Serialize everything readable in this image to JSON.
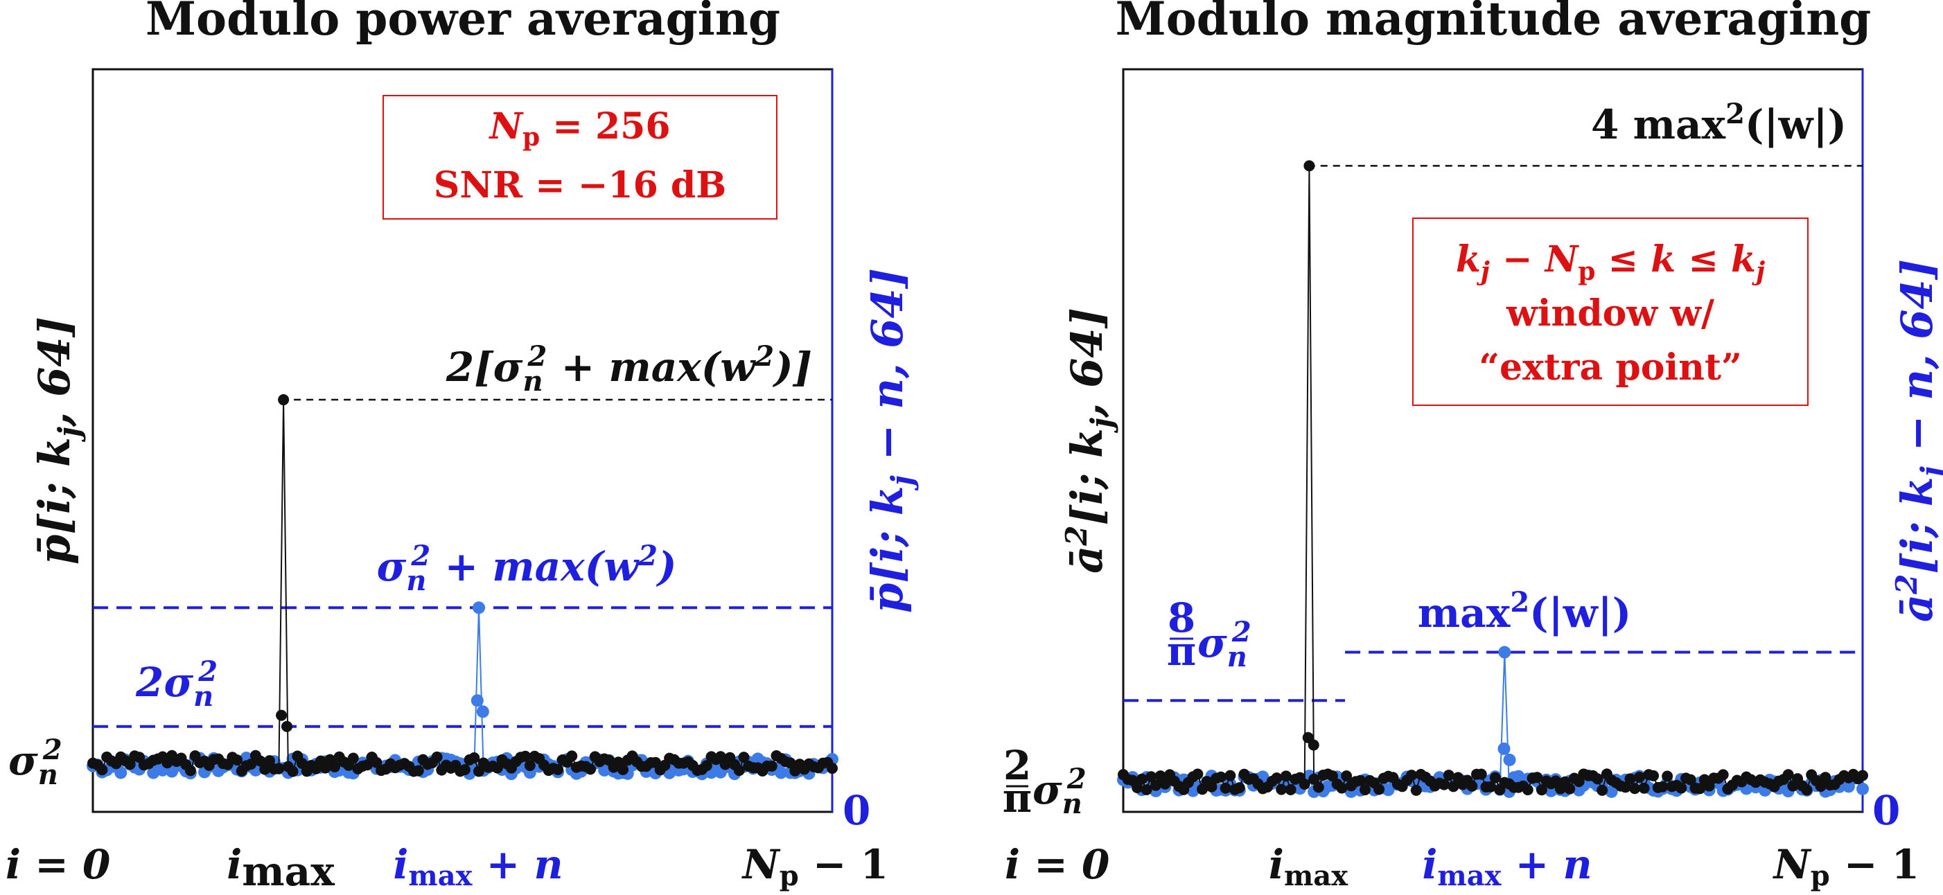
{
  "colors": {
    "black_series": "#111111",
    "blue_series": "#3d7be8",
    "blue_text": "#1f1fe0",
    "red_annot": "#dd1111",
    "ref_black": "#111111",
    "ref_blue": "#1f1fe0"
  },
  "chart_data": [
    {
      "type": "line",
      "title": "Modulo power averaging",
      "ylabel_left": "p̄[i; k_j, 64]",
      "ylabel_right": "p̄[i; k_j − n, 64]",
      "x_ticks": [
        {
          "x": 0,
          "label": "i = 0"
        },
        {
          "x": 0.255,
          "label": "i_max"
        },
        {
          "x": 0.52,
          "label": "i_max + n"
        },
        {
          "x": 1,
          "label": "N_p − 1"
        }
      ],
      "xlim": [
        0,
        1
      ],
      "ylim": [
        0,
        1
      ],
      "left_tick": {
        "y": 0.065,
        "label": "σ_n²"
      },
      "right_tick": {
        "y": 0,
        "label": "0"
      },
      "noise_level_black": 0.065,
      "noise_level_blue": 0.062,
      "series": [
        {
          "name": "black",
          "peak_x": 0.255,
          "peak_y": 0.555,
          "side_values": [
            0.13,
            0.115
          ]
        },
        {
          "name": "blue",
          "peak_x": 0.52,
          "peak_y": 0.275,
          "side_values": [
            0.15,
            0.135
          ]
        }
      ],
      "reference_lines": [
        {
          "y": 0.555,
          "style": "black-dashed",
          "x_start": 0.255,
          "label": "2[σ_n² + max(w²)]"
        },
        {
          "y": 0.275,
          "style": "blue-dashed",
          "x_start": 0,
          "label": "σ_n² + max(w²)"
        },
        {
          "y": 0.115,
          "style": "blue-dashed",
          "x_start": 0,
          "label": "2σ_n²"
        }
      ],
      "annotation_box": [
        "N_p = 256",
        "SNR = −16 dB"
      ]
    },
    {
      "type": "line",
      "title": "Modulo magnitude averaging",
      "ylabel_left": "ā²[i; k_j, 64]",
      "ylabel_right": "ā²[i; k_j − n, 64]",
      "x_ticks": [
        {
          "x": 0,
          "label": "i = 0"
        },
        {
          "x": 0.25,
          "label": "i_max"
        },
        {
          "x": 0.515,
          "label": "i_max + n"
        },
        {
          "x": 1,
          "label": "N_p − 1"
        }
      ],
      "xlim": [
        0,
        1
      ],
      "ylim": [
        0,
        1
      ],
      "left_tick": {
        "y": 0.04,
        "label": "(2/π)σ_n²"
      },
      "right_tick": {
        "y": 0,
        "label": "0"
      },
      "noise_level_black": 0.04,
      "noise_level_blue": 0.038,
      "series": [
        {
          "name": "black",
          "peak_x": 0.25,
          "peak_y": 0.87,
          "side_values": [
            0.1,
            0.09
          ]
        },
        {
          "name": "blue",
          "peak_x": 0.515,
          "peak_y": 0.215,
          "side_values": [
            0.085,
            0.07
          ]
        }
      ],
      "reference_lines": [
        {
          "y": 0.87,
          "style": "black-dashed",
          "x_start": 0.25,
          "label": "4 max²(|w|)"
        },
        {
          "y": 0.215,
          "style": "blue-dashed",
          "x_start": 0.3,
          "label": "max²(|w|)"
        },
        {
          "y": 0.15,
          "style": "blue-dashed",
          "x_start": 0,
          "x_end": 0.3,
          "label": "(8/π)σ_n²"
        }
      ],
      "annotation_box": [
        "k_j − N_p ≤ k ≤ k_j",
        "window w/",
        "“extra point”"
      ]
    }
  ],
  "text": {
    "title_left": "Modulo power averaging",
    "title_right": "Modulo magnitude averaging",
    "box_left_line1": "N",
    "box_left_line1_sub": "p",
    "box_left_line1_rest": " = 256",
    "box_left_line2": "SNR = −16 dB",
    "box_right_line1_a": "k",
    "box_right_line1_b": "j",
    "box_right_line1_c": " − N",
    "box_right_line1_d": "p",
    "box_right_line1_e": " ≤ k ≤ k",
    "box_right_line1_f": "j",
    "box_right_line2": "window w/",
    "box_right_line3": "“extra point”",
    "ref_l1_a": "2[σ",
    "ref_l1_b": "n",
    "ref_l1_c": "2",
    "ref_l1_d": " + max(w",
    "ref_l1_e": "2",
    "ref_l1_f": ")]",
    "ref_l2_a": "σ",
    "ref_l2_b": "n",
    "ref_l2_c": "2",
    "ref_l2_d": " + max(w",
    "ref_l2_e": "2",
    "ref_l2_f": ")",
    "ref_l3_a": "2σ",
    "ref_l3_b": "n",
    "ref_l3_c": "2",
    "ref_r1_a": "4 max",
    "ref_r1_b": "2",
    "ref_r1_c": "(|w|)",
    "ref_r2_a": "max",
    "ref_r2_b": "2",
    "ref_r2_c": "(|w|)",
    "ref_r3_num": "8",
    "ref_r3_den": "π",
    "ref_r3_a": "σ",
    "ref_r3_b": "n",
    "ref_r3_c": "2",
    "ylab_l_a": "p̄[i; k",
    "ylab_l_b": "j",
    "ylab_l_c": ", 64]",
    "ylab_lr_a": "p̄[i; k",
    "ylab_lr_b": "j",
    "ylab_lr_c": " − n, 64]",
    "ylab_r_a": "ā",
    "ylab_r_b": "2",
    "ylab_r_c": "[i; k",
    "ylab_r_d": "j",
    "ylab_r_e": ", 64]",
    "ylab_rr_a": "ā",
    "ylab_rr_b": "2",
    "ylab_rr_c": "[i; k",
    "ylab_rr_d": "j",
    "ylab_rr_e": " − n, 64]",
    "tick_sigma_a": "σ",
    "tick_sigma_b": "n",
    "tick_sigma_c": "2",
    "tick_r_num": "2",
    "tick_r_den": "π",
    "tick_r_a": "σ",
    "tick_r_b": "n",
    "tick_r_c": "2",
    "zero": "0",
    "xt_i0": "i = 0",
    "xt_imax_a": "i",
    "xt_imax_b": "max",
    "xt_imaxn_a": "i",
    "xt_imaxn_b": "max",
    "xt_imaxn_c": " + n",
    "xt_np_a": "N",
    "xt_np_b": "p",
    "xt_np_c": " − 1"
  }
}
